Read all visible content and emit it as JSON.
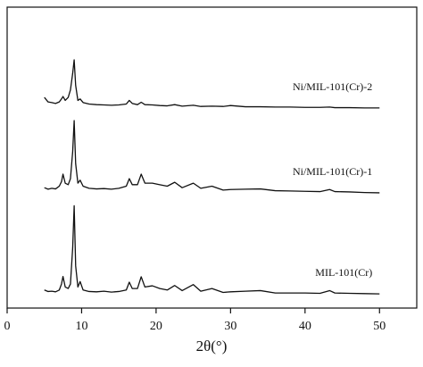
{
  "chart_data": {
    "type": "line",
    "x_label": "2θ(°)",
    "x": [
      5,
      5.5,
      6,
      6.5,
      7,
      7.3,
      7.5,
      7.8,
      8.2,
      8.5,
      8.8,
      9,
      9.2,
      9.5,
      9.8,
      10.2,
      11,
      12,
      13,
      14,
      15,
      16,
      16.4,
      16.8,
      17.5,
      18,
      18.5,
      19.5,
      20.5,
      21.5,
      22.5,
      23.5,
      25,
      26,
      27.5,
      29,
      30,
      32,
      34,
      36,
      38,
      40,
      42,
      43.3,
      44,
      46,
      48,
      50
    ],
    "series": [
      {
        "name": "MIL-101(Cr)",
        "color": "#111111",
        "values": [
          6,
          5.5,
          5.6,
          5.4,
          6,
          8,
          10.5,
          7,
          6.5,
          8,
          20,
          34,
          14,
          7,
          8.8,
          6,
          5.5,
          5.4,
          5.6,
          5.3,
          5.5,
          6,
          8.6,
          6.5,
          6.5,
          10.4,
          7,
          7.4,
          6.5,
          6,
          7.5,
          5.8,
          7.8,
          5.6,
          6.5,
          5.2,
          5.4,
          5.6,
          5.8,
          5,
          5,
          5,
          4.9,
          5.8,
          5,
          4.9,
          4.8,
          4.7
        ]
      },
      {
        "name": "Ni/MIL-101(Cr)-1",
        "color": "#111111",
        "values": [
          40,
          39.5,
          39.8,
          39.6,
          40.5,
          42,
          44.5,
          41.5,
          41,
          43,
          52,
          62.3,
          48,
          41.5,
          42.5,
          40.5,
          39.8,
          39.6,
          39.7,
          39.5,
          39.8,
          40.5,
          43,
          41,
          41,
          44.5,
          41.5,
          41.5,
          41,
          40.5,
          41.8,
          40,
          41.5,
          39.8,
          40.5,
          39.2,
          39.4,
          39.5,
          39.6,
          39,
          38.9,
          38.8,
          38.7,
          39.4,
          38.7,
          38.6,
          38.4,
          38.3
        ]
      },
      {
        "name": "Ni/MIL-101(Cr)-2",
        "color": "#111111",
        "values": [
          70,
          68.5,
          68.3,
          68,
          68.5,
          69.5,
          70.3,
          69,
          70,
          72.5,
          78,
          82.5,
          74,
          69,
          69.5,
          68.3,
          67.8,
          67.6,
          67.5,
          67.4,
          67.5,
          67.8,
          69,
          68,
          67.6,
          68.4,
          67.6,
          67.5,
          67.3,
          67.2,
          67.6,
          67.1,
          67.4,
          67,
          67.1,
          67,
          67.3,
          66.9,
          66.9,
          66.8,
          66.8,
          66.7,
          66.7,
          66.8,
          66.6,
          66.6,
          66.5,
          66.5
        ]
      }
    ],
    "xlim": [
      0,
      55
    ],
    "xticks": [
      0,
      10,
      20,
      30,
      40,
      50
    ],
    "ylim": [
      0,
      100
    ]
  }
}
